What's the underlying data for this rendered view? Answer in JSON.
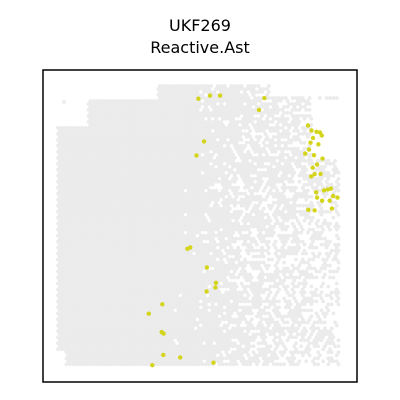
{
  "title": {
    "line1": "UKF269",
    "line2": "Reactive.Ast"
  },
  "colors": {
    "background_spot": "#ebebeb",
    "highlight_spot": "#d4d41a",
    "frame": "#000000"
  },
  "chart_data": {
    "type": "scatter",
    "title": "UKF269\nReactive.Ast",
    "xlabel": "",
    "ylabel": "",
    "xlim": [
      0,
      100
    ],
    "ylim": [
      0,
      100
    ],
    "axes_ticks": false,
    "grid": false,
    "series": [
      {
        "role": "background",
        "color": "#ebebeb",
        "description_free_points": [],
        "regions": [
          {
            "shape": "rect",
            "x": [
              6,
              91
            ],
            "y": [
              5,
              87
            ]
          }
        ]
      },
      {
        "role": "highlight",
        "color": "#d4d41a",
        "x": [
          49.5,
          53.2,
          56.4,
          70.5,
          68.8,
          84.4,
          85.5,
          87.1,
          88.2,
          86.0,
          88.8,
          85.2,
          87.7,
          84.7,
          83.5,
          86.3,
          89.0,
          87.3,
          85.9,
          88.4,
          86.5,
          85.4,
          89.5,
          87.0,
          91.7,
          90.7,
          87.3,
          88.9,
          92.4,
          91.3,
          93.8,
          92.0,
          84.5,
          86.5,
          51.3,
          48.9,
          46.9,
          46.0,
          52.2,
          55.1,
          54.9,
          52.1,
          33.7,
          38.0,
          37.8,
          38.4,
          38.3,
          43.7,
          34.8,
          54.3
        ],
        "y": [
          90.8,
          91.8,
          91.8,
          91.0,
          87.2,
          82.2,
          80.6,
          80.2,
          80.0,
          78.2,
          79.0,
          76.7,
          76.2,
          74.5,
          73.2,
          72.7,
          71.6,
          69.7,
          68.7,
          66.7,
          66.6,
          65.9,
          61.4,
          60.8,
          62.0,
          61.7,
          59.1,
          58.1,
          59.6,
          58.1,
          59.1,
          55.6,
          55.2,
          55.0,
          77.1,
          72.6,
          43.1,
          42.7,
          36.7,
          31.8,
          30.3,
          29.0,
          21.9,
          24.9,
          16.0,
          15.5,
          8.7,
          7.9,
          5.4,
          6.2
        ]
      }
    ]
  }
}
